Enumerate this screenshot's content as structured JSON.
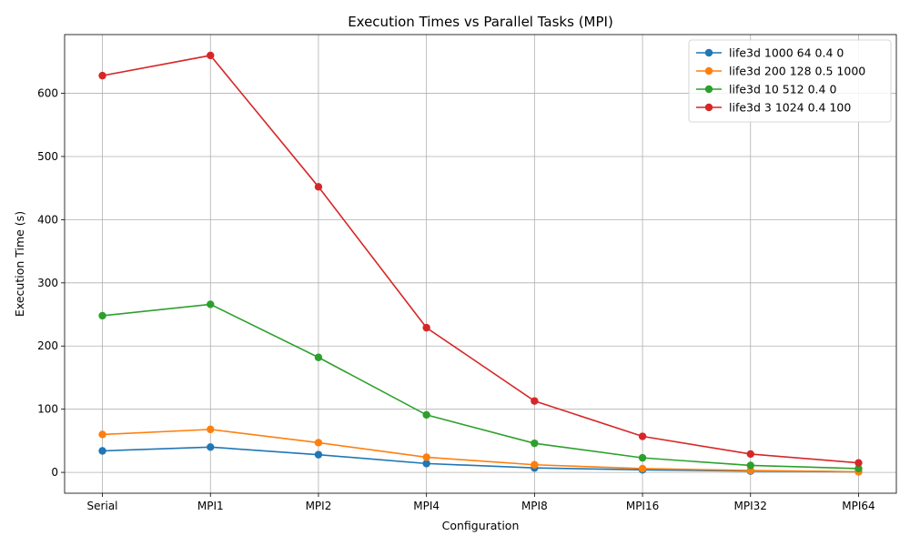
{
  "chart_data": {
    "type": "line",
    "title": "Execution Times vs Parallel Tasks (MPI)",
    "xlabel": "Configuration",
    "ylabel": "Execution Time (s)",
    "categories": [
      "Serial",
      "MPI1",
      "MPI2",
      "MPI4",
      "MPI8",
      "MPI16",
      "MPI32",
      "MPI64"
    ],
    "ylim": [
      -33,
      693
    ],
    "yticks": [
      0,
      100,
      200,
      300,
      400,
      500,
      600
    ],
    "grid": true,
    "legend_position": "top-right",
    "series": [
      {
        "name": "life3d 1000 64 0.4 0",
        "color": "#1f77b4",
        "values": [
          34,
          40,
          28,
          14,
          7,
          4,
          2,
          1
        ]
      },
      {
        "name": "life3d 200 128 0.5 1000",
        "color": "#ff7f0e",
        "values": [
          60,
          68,
          47,
          24,
          12,
          6,
          3,
          1
        ]
      },
      {
        "name": "life3d 10 512 0.4 0",
        "color": "#2ca02c",
        "values": [
          248,
          266,
          182,
          91,
          46,
          23,
          11,
          6
        ]
      },
      {
        "name": "life3d 3 1024 0.4 100",
        "color": "#d62728",
        "values": [
          628,
          660,
          452,
          229,
          113,
          57,
          29,
          15
        ]
      }
    ]
  }
}
